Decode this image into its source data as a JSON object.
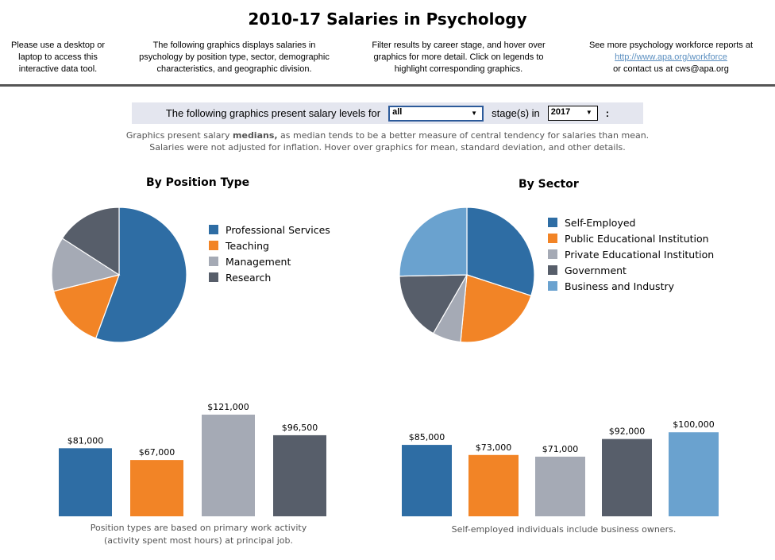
{
  "header": {
    "title": "2010-17 Salaries in Psychology",
    "col1": [
      "Please use a desktop or",
      "laptop to access this",
      "interactive data tool."
    ],
    "col2": [
      "The following graphics displays salaries in",
      "psychology by position type, sector, demographic",
      "characteristics, and geographic division."
    ],
    "col3": [
      "Filter results by career stage, and hover over",
      "graphics for more detail. Click  on legends to",
      "highlight corresponding graphics."
    ],
    "col4": {
      "line1": "See more psychology workforce reports at",
      "link": "http://www.apa.org/workforce",
      "line3": "or contact us at cws@apa.org"
    }
  },
  "filter": {
    "prefix": "The following graphics present salary levels for",
    "stage_value": "all",
    "middle": "stage(s) in",
    "year_value": "2017",
    "suffix": ":"
  },
  "note": {
    "line1_a": "Graphics present salary ",
    "line1_b": "medians,",
    "line1_c": " as median tends to be a better measure of central tendency for salaries than mean.",
    "line2": "Salaries were not adjusted for inflation. Hover over graphics for mean, standard deviation, and other details."
  },
  "colors": {
    "blue": "#2e6da4",
    "orange": "#f28426",
    "gray": "#a5aab5",
    "dark": "#575e6a",
    "lightblue": "#6aa2cf"
  },
  "chart_data": [
    {
      "type": "pie",
      "title": "By Position Type",
      "categories": [
        "Professional Services",
        "Teaching",
        "Management",
        "Research"
      ],
      "values": [
        55.6,
        15.5,
        13,
        15.9
      ],
      "colors": [
        "#2e6da4",
        "#f28426",
        "#a5aab5",
        "#575e6a"
      ],
      "legend": "right"
    },
    {
      "type": "pie",
      "title": "By Sector",
      "categories": [
        "Self-Employed",
        "Public Educational Institution",
        "Private Educational Institution",
        "Government",
        "Business and Industry"
      ],
      "values": [
        30,
        21.5,
        6.8,
        16.4,
        25.3
      ],
      "colors": [
        "#2e6da4",
        "#f28426",
        "#a5aab5",
        "#575e6a",
        "#6aa2cf"
      ],
      "legend": "right"
    },
    {
      "type": "bar",
      "categories": [
        "Professional Services",
        "Teaching",
        "Management",
        "Research"
      ],
      "values": [
        81000,
        67000,
        121000,
        96500
      ],
      "labels": [
        "$81,000",
        "$67,000",
        "$121,000",
        "$96,500"
      ],
      "colors": [
        "#2e6da4",
        "#f28426",
        "#a5aab5",
        "#575e6a"
      ],
      "footnote": [
        "Position types are based on primary work activity",
        "(activity spent most hours) at principal job."
      ]
    },
    {
      "type": "bar",
      "categories": [
        "Self-Employed",
        "Public Educational Institution",
        "Private Educational Institution",
        "Government",
        "Business and Industry"
      ],
      "values": [
        85000,
        73000,
        71000,
        92000,
        100000
      ],
      "labels": [
        "$85,000",
        "$73,000",
        "$71,000",
        "$92,000",
        "$100,000"
      ],
      "colors": [
        "#2e6da4",
        "#f28426",
        "#a5aab5",
        "#575e6a",
        "#6aa2cf"
      ],
      "footnote": [
        "Self-employed individuals include business owners."
      ]
    }
  ]
}
